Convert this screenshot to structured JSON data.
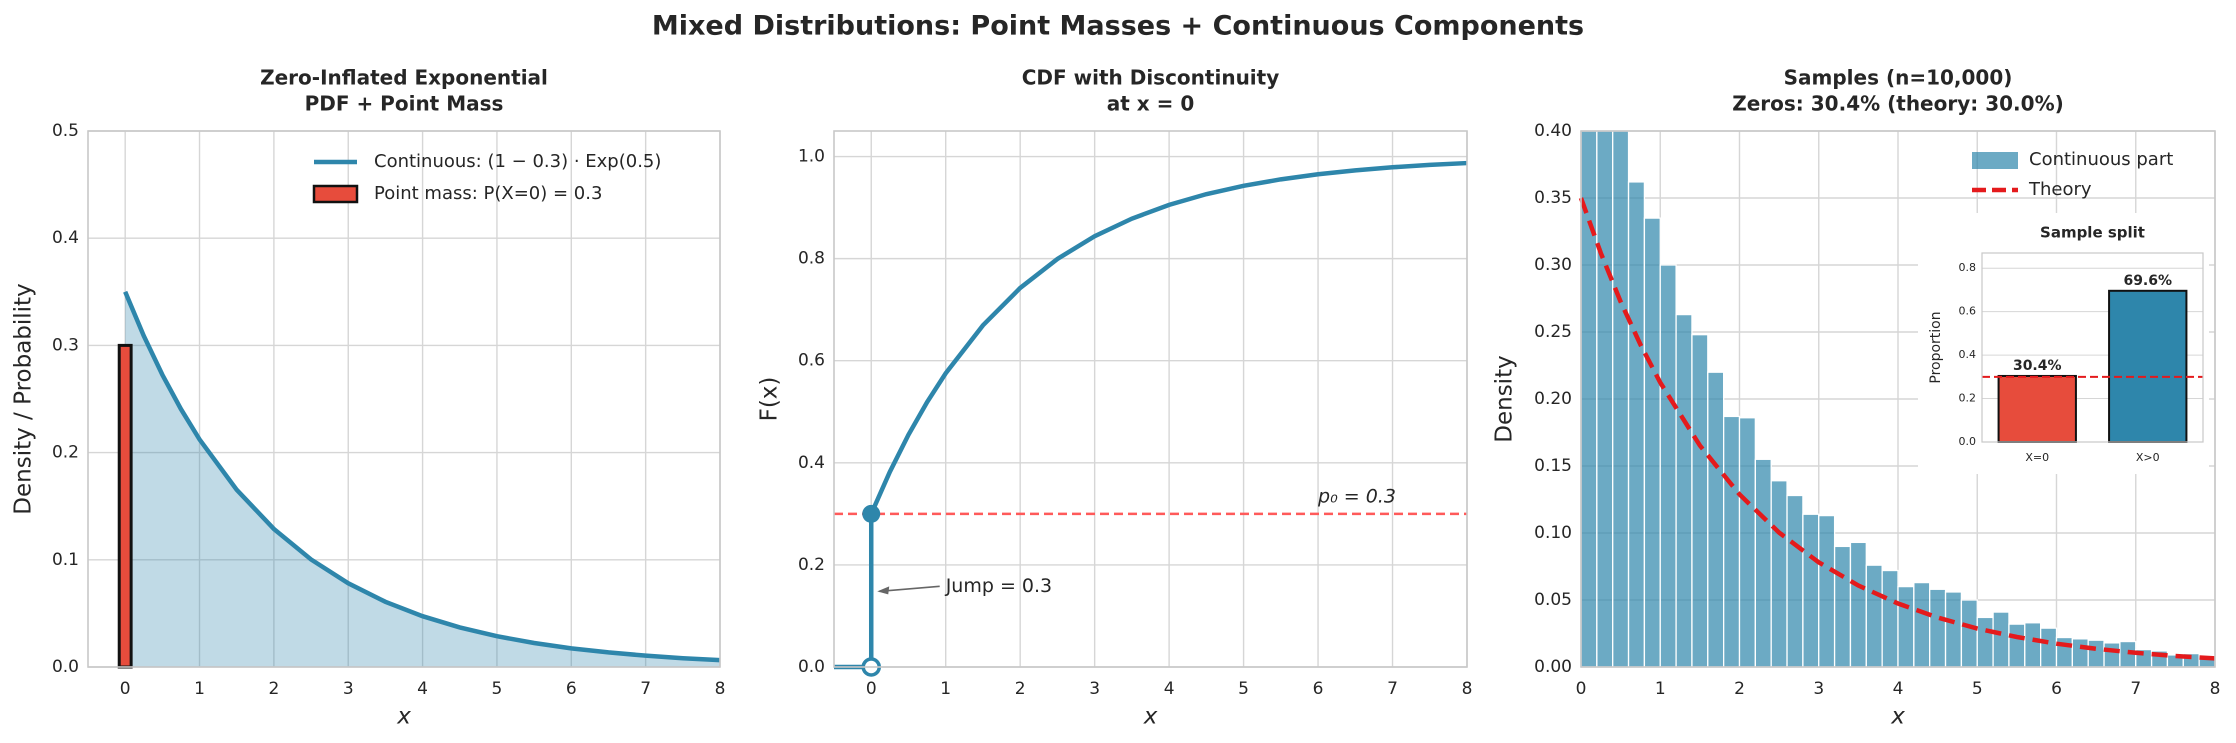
{
  "title": "Mixed Distributions: Point Masses + Continuous Components",
  "chart_data": [
    {
      "type": "line",
      "title": [
        "Zero-Inflated Exponential",
        "PDF + Point Mass"
      ],
      "xlabel": "x",
      "ylabel": "Density / Probability",
      "xlim": [
        -0.5,
        8
      ],
      "xticks": [
        0,
        1,
        2,
        3,
        4,
        5,
        6,
        7,
        8
      ],
      "ylim": [
        0,
        0.5
      ],
      "yticks": [
        {
          "value": 0,
          "label": "0.0"
        },
        0.1,
        0.2,
        0.3,
        0.4,
        0.5
      ],
      "grid": true,
      "legend": "upper right",
      "x": [
        0,
        0.25,
        0.5,
        0.75,
        1,
        1.5,
        2,
        2.5,
        3,
        3.5,
        4,
        4.5,
        5,
        5.5,
        6,
        6.5,
        7,
        7.5,
        8
      ],
      "series": [
        {
          "name": "Continuous: (1 − 0.3) · Exp(0.5)",
          "color": "#2e86ab",
          "fill": true,
          "values": [
            0.35,
            0.3089,
            0.2726,
            0.2406,
            0.2123,
            0.1653,
            0.1288,
            0.1003,
            0.0781,
            0.0608,
            0.0474,
            0.0369,
            0.0287,
            0.0224,
            0.0174,
            0.0136,
            0.0106,
            0.0082,
            0.0064
          ]
        }
      ],
      "point_mass": {
        "name": "Point mass: P(X=0) = 0.3",
        "color": "#e74c3c",
        "x": 0,
        "value": 0.3
      }
    },
    {
      "type": "cdf",
      "title": [
        "CDF with Discontinuity",
        "at x = 0"
      ],
      "xlabel": "x",
      "ylabel": "F(x)",
      "xlim": [
        -0.5,
        8
      ],
      "xticks": [
        0,
        1,
        2,
        3,
        4,
        5,
        6,
        7,
        8
      ],
      "ylim": [
        0,
        1.05
      ],
      "yticks": [
        {
          "value": 0,
          "label": "0.0"
        },
        0.2,
        0.4,
        0.6,
        0.8,
        {
          "value": 1,
          "label": "1.0"
        }
      ],
      "grid": true,
      "x": [
        -0.5,
        0,
        0,
        0.25,
        0.5,
        0.75,
        1,
        1.5,
        2,
        2.5,
        3,
        3.5,
        4,
        4.5,
        5,
        5.5,
        6,
        6.5,
        7,
        7.5,
        8
      ],
      "series": [
        {
          "color": "#2e86ab",
          "values": [
            0,
            0,
            0.3,
            0.3823,
            0.4549,
            0.5189,
            0.5754,
            0.6693,
            0.7425,
            0.7994,
            0.8438,
            0.8783,
            0.9053,
            0.9263,
            0.9426,
            0.9553,
            0.9652,
            0.9729,
            0.9789,
            0.9836,
            0.9872
          ]
        }
      ],
      "hline": 0.3,
      "hline_color": "#ff5a5a",
      "hline_label": "p₀ = 0.3",
      "annotation": "Jump = 0.3"
    },
    {
      "type": "histogram",
      "title": [
        "Samples (n=10,000)",
        "Zeros: 30.4% (theory: 30.0%)"
      ],
      "xlabel": "x",
      "ylabel": "Density",
      "xlim": [
        0,
        8
      ],
      "xticks": [
        0,
        1,
        2,
        3,
        4,
        5,
        6,
        7,
        8
      ],
      "ylim": [
        0,
        0.4
      ],
      "yticks": [
        {
          "value": 0,
          "label": "0.00"
        },
        0.05,
        {
          "value": 0.1,
          "label": "0.10"
        },
        0.15,
        {
          "value": 0.2,
          "label": "0.20"
        },
        0.25,
        {
          "value": 0.3,
          "label": "0.30"
        },
        0.35,
        {
          "value": 0.4,
          "label": "0.40"
        }
      ],
      "grid": true,
      "legend": "upper right",
      "name": "Continuous part",
      "color": "#2e86ab",
      "bins": [
        0,
        0.2,
        0.4,
        0.6,
        0.8,
        1,
        1.2,
        1.4,
        1.6,
        1.8,
        2,
        2.2,
        2.4,
        2.6,
        2.8,
        3,
        3.2,
        3.4,
        3.6,
        3.8,
        4,
        4.2,
        4.4,
        4.6,
        4.8,
        5,
        5.2,
        5.4,
        5.6,
        5.8,
        6,
        6.2,
        6.4,
        6.6,
        6.8,
        7,
        7.2,
        7.4,
        7.6,
        7.8,
        8
      ],
      "values": [
        0.4,
        0.4,
        0.4,
        0.362,
        0.335,
        0.3,
        0.263,
        0.248,
        0.22,
        0.187,
        0.186,
        0.155,
        0.139,
        0.128,
        0.114,
        0.113,
        0.09,
        0.093,
        0.076,
        0.072,
        0.06,
        0.063,
        0.058,
        0.056,
        0.05,
        0.037,
        0.041,
        0.032,
        0.033,
        0.029,
        0.022,
        0.021,
        0.02,
        0.018,
        0.019,
        0.013,
        0.012,
        0.009,
        0.01,
        0.008
      ],
      "theory": {
        "name": "Theory",
        "color": "#e41a1c",
        "x": [
          0,
          0.25,
          0.5,
          0.75,
          1,
          1.5,
          2,
          2.5,
          3,
          3.5,
          4,
          4.5,
          5,
          5.5,
          6,
          6.5,
          7,
          7.5,
          8
        ],
        "values": [
          0.35,
          0.3089,
          0.2726,
          0.2406,
          0.2123,
          0.1653,
          0.1288,
          0.1003,
          0.0781,
          0.0608,
          0.0474,
          0.0369,
          0.0287,
          0.0224,
          0.0174,
          0.0136,
          0.0106,
          0.0082,
          0.0064
        ]
      }
    },
    {
      "type": "bar",
      "title": "Sample split",
      "ylabel": "Proportion",
      "categories": [
        "X=0",
        "X>0"
      ],
      "values": [
        0.304,
        0.696
      ],
      "value_labels": [
        "30.4%",
        "69.6%"
      ],
      "colors": [
        "#e74c3c",
        "#2e86ab"
      ],
      "ylim": [
        0,
        0.87
      ],
      "yticks": [
        {
          "value": 0,
          "label": "0.0"
        },
        0.2,
        0.4,
        0.6,
        0.8
      ],
      "grid": true,
      "hline": 0.3,
      "hline_color": "#e41a1c"
    }
  ]
}
